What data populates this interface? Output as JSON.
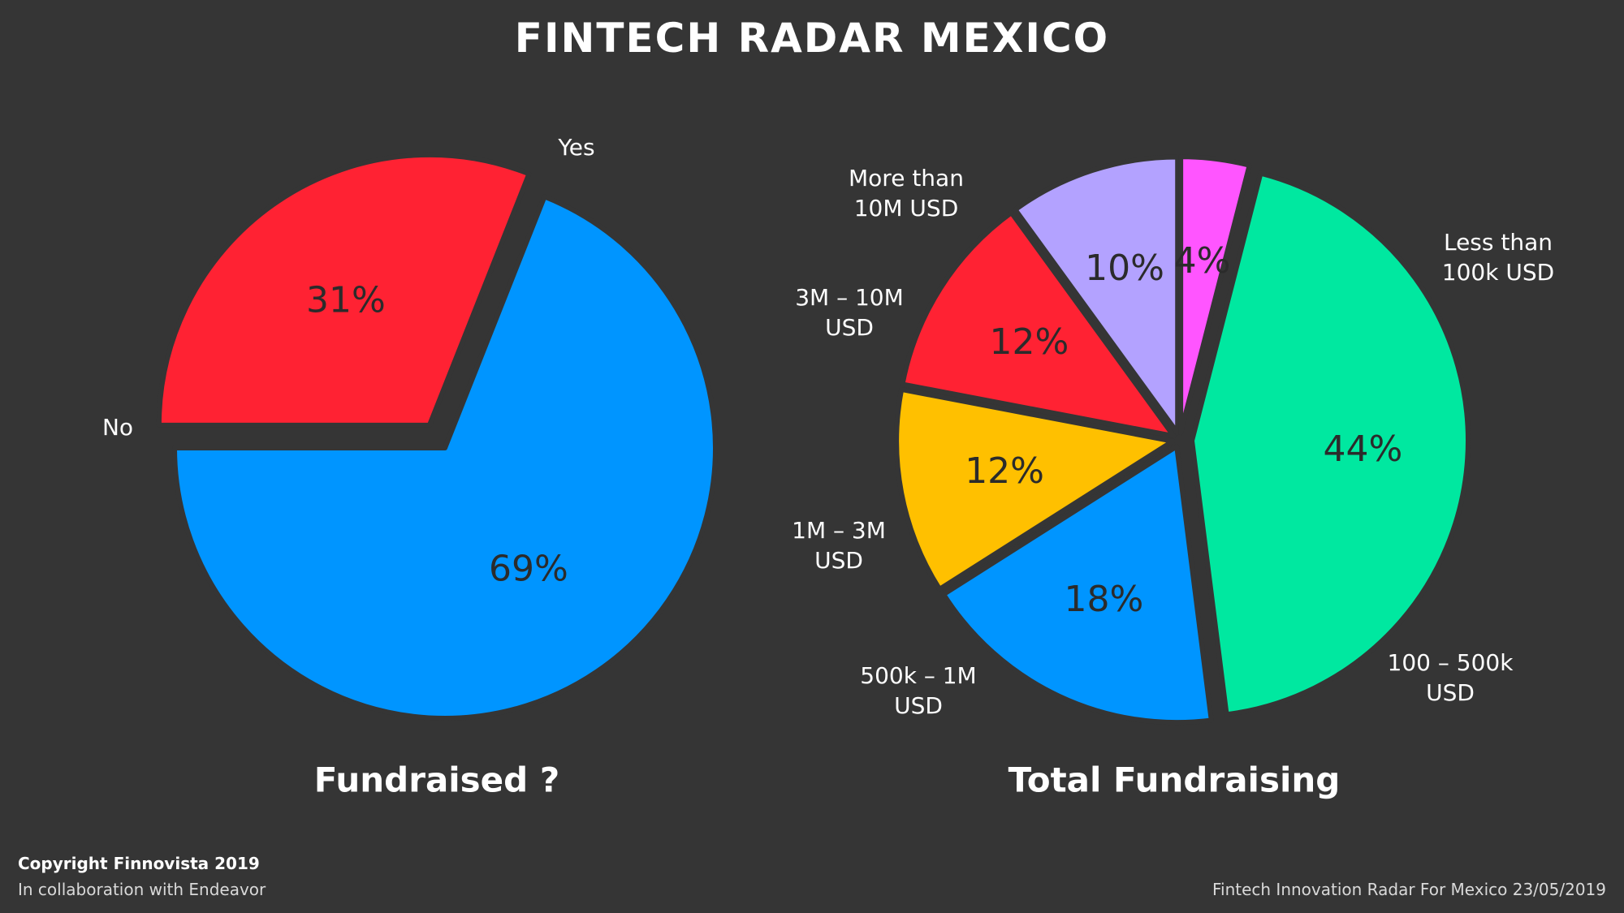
{
  "page": {
    "title": "FINTECH RADAR MEXICO",
    "background": "#353535"
  },
  "chart_data": [
    {
      "type": "pie",
      "title": "Fundraised ?",
      "slices": [
        {
          "label": "Yes",
          "value": 69,
          "value_label": "69%",
          "color": "#0095FF"
        },
        {
          "label": "No",
          "value": 31,
          "value_label": "31%",
          "color": "#FF2233"
        }
      ]
    },
    {
      "type": "pie",
      "title": "Total Fundraising",
      "slices": [
        {
          "label": "Less than 100k USD",
          "value": 44,
          "value_label": "44%",
          "color": "#00E8A0"
        },
        {
          "label": "100 – 500k USD",
          "value": 18,
          "value_label": "18%",
          "color": "#0095FF"
        },
        {
          "label": "500k – 1M USD",
          "value": 12,
          "value_label": "12%",
          "color": "#FFC000"
        },
        {
          "label": "1M – 3M USD",
          "value": 12,
          "value_label": "12%",
          "color": "#FF2233"
        },
        {
          "label": "3M – 10M USD",
          "value": 10,
          "value_label": "10%",
          "color": "#B3A2FF"
        },
        {
          "label": "More than 10M USD",
          "value": 4,
          "value_label": "4%",
          "color": "#FF55FF"
        }
      ]
    }
  ],
  "footer": {
    "copyright": "Copyright Finnovista 2019",
    "collaboration": "In collaboration with Endeavor",
    "source": "Fintech Innovation Radar For Mexico 23/05/2019"
  }
}
